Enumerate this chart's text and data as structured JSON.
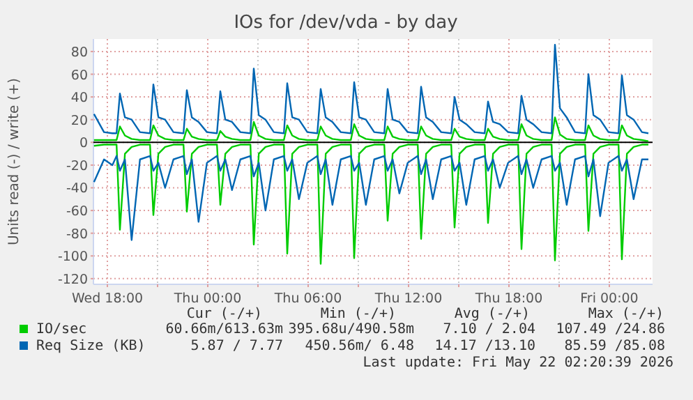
{
  "chart_data": {
    "type": "line",
    "title": "IOs for /dev/vda - by day",
    "ylabel": "Units read (-) / write (+)",
    "x": [
      "2026-05-20T17:12",
      "2026-05-20T17:48",
      "2026-05-20T18:18",
      "2026-05-20T18:33",
      "2026-05-20T18:45",
      "2026-05-20T19:03",
      "2026-05-20T19:27",
      "2026-05-20T19:57",
      "2026-05-20T20:33",
      "2026-05-20T20:45",
      "2026-05-20T21:03",
      "2026-05-20T21:27",
      "2026-05-20T21:57",
      "2026-05-20T22:33",
      "2026-05-20T22:45",
      "2026-05-20T23:03",
      "2026-05-20T23:27",
      "2026-05-20T23:57",
      "2026-05-21T00:33",
      "2026-05-21T00:45",
      "2026-05-21T01:03",
      "2026-05-21T01:27",
      "2026-05-21T01:57",
      "2026-05-21T02:33",
      "2026-05-21T02:45",
      "2026-05-21T03:03",
      "2026-05-21T03:27",
      "2026-05-21T03:57",
      "2026-05-21T04:33",
      "2026-05-21T04:45",
      "2026-05-21T05:03",
      "2026-05-21T05:27",
      "2026-05-21T05:57",
      "2026-05-21T06:33",
      "2026-05-21T06:45",
      "2026-05-21T07:03",
      "2026-05-21T07:27",
      "2026-05-21T07:57",
      "2026-05-21T08:33",
      "2026-05-21T08:45",
      "2026-05-21T09:03",
      "2026-05-21T09:27",
      "2026-05-21T09:57",
      "2026-05-21T10:33",
      "2026-05-21T10:45",
      "2026-05-21T11:03",
      "2026-05-21T11:27",
      "2026-05-21T11:57",
      "2026-05-21T12:33",
      "2026-05-21T12:45",
      "2026-05-21T13:03",
      "2026-05-21T13:27",
      "2026-05-21T13:57",
      "2026-05-21T14:33",
      "2026-05-21T14:45",
      "2026-05-21T15:03",
      "2026-05-21T15:27",
      "2026-05-21T15:57",
      "2026-05-21T16:33",
      "2026-05-21T16:45",
      "2026-05-21T17:03",
      "2026-05-21T17:27",
      "2026-05-21T17:57",
      "2026-05-21T18:33",
      "2026-05-21T18:45",
      "2026-05-21T19:03",
      "2026-05-21T19:27",
      "2026-05-21T19:57",
      "2026-05-21T20:33",
      "2026-05-21T20:45",
      "2026-05-21T21:03",
      "2026-05-21T21:27",
      "2026-05-21T21:57",
      "2026-05-21T22:33",
      "2026-05-21T22:45",
      "2026-05-21T23:03",
      "2026-05-21T23:27",
      "2026-05-21T23:57",
      "2026-05-22T00:33",
      "2026-05-22T00:45",
      "2026-05-22T01:03",
      "2026-05-22T01:27",
      "2026-05-22T01:57",
      "2026-05-22T02:20"
    ],
    "series": [
      {
        "name": "IO/sec",
        "color": "#00cc00",
        "values": [
          2,
          2,
          2,
          2,
          14,
          6,
          3,
          2,
          2,
          15,
          6,
          3,
          2,
          2,
          12,
          5,
          3,
          2,
          2,
          10,
          5,
          3,
          2,
          2,
          18,
          6,
          3,
          2,
          2,
          15,
          6,
          3,
          2,
          2,
          14,
          6,
          3,
          2,
          2,
          16,
          6,
          3,
          2,
          2,
          14,
          5,
          3,
          2,
          2,
          14,
          6,
          3,
          2,
          2,
          12,
          5,
          3,
          2,
          2,
          12,
          5,
          3,
          2,
          2,
          16,
          6,
          3,
          2,
          2,
          22,
          7,
          3,
          2,
          2,
          15,
          6,
          3,
          2,
          2,
          15,
          6,
          3,
          2,
          1
        ]
      },
      {
        "color": "#00cc00",
        "values": [
          -3,
          -2,
          -2,
          -2,
          -77,
          -10,
          -4,
          -2,
          -2,
          -64,
          -10,
          -4,
          -2,
          -2,
          -61,
          -10,
          -4,
          -2,
          -2,
          -55,
          -10,
          -4,
          -2,
          -2,
          -90,
          -10,
          -4,
          -2,
          -2,
          -98,
          -10,
          -4,
          -2,
          -2,
          -107,
          -10,
          -4,
          -2,
          -2,
          -102,
          -10,
          -4,
          -2,
          -2,
          -69,
          -10,
          -4,
          -2,
          -2,
          -85,
          -10,
          -4,
          -2,
          -2,
          -75,
          -10,
          -4,
          -2,
          -2,
          -71,
          -10,
          -4,
          -2,
          -2,
          -94,
          -10,
          -4,
          -2,
          -2,
          -104,
          -10,
          -4,
          -2,
          -2,
          -78,
          -10,
          -4,
          -2,
          -2,
          -103,
          -10,
          -4,
          -2,
          -2
        ]
      },
      {
        "name": "Req Size (KB)",
        "color": "#0066b3",
        "values": [
          25,
          9,
          8,
          8,
          43,
          22,
          20,
          9,
          8,
          51,
          22,
          20,
          9,
          8,
          46,
          22,
          18,
          9,
          8,
          45,
          20,
          18,
          9,
          8,
          65,
          24,
          20,
          9,
          8,
          52,
          22,
          20,
          9,
          8,
          47,
          22,
          18,
          9,
          8,
          53,
          22,
          20,
          9,
          8,
          47,
          20,
          18,
          9,
          8,
          49,
          22,
          18,
          9,
          8,
          40,
          20,
          16,
          9,
          8,
          36,
          18,
          16,
          9,
          8,
          41,
          20,
          16,
          9,
          8,
          86,
          30,
          22,
          9,
          8,
          60,
          24,
          20,
          9,
          8,
          59,
          24,
          20,
          9,
          8
        ]
      },
      {
        "color": "#0066b3",
        "values": [
          -35,
          -15,
          -20,
          -12,
          -25,
          -15,
          -86,
          -15,
          -12,
          -25,
          -18,
          -40,
          -15,
          -12,
          -28,
          -15,
          -70,
          -18,
          -12,
          -25,
          -15,
          -42,
          -15,
          -12,
          -30,
          -18,
          -60,
          -15,
          -12,
          -25,
          -15,
          -50,
          -18,
          -12,
          -28,
          -15,
          -55,
          -15,
          -12,
          -25,
          -18,
          -55,
          -15,
          -12,
          -25,
          -15,
          -45,
          -18,
          -12,
          -28,
          -15,
          -50,
          -15,
          -12,
          -25,
          -18,
          -55,
          -15,
          -12,
          -25,
          -15,
          -40,
          -18,
          -12,
          -28,
          -15,
          -40,
          -15,
          -12,
          -25,
          -18,
          -55,
          -15,
          -12,
          -30,
          -15,
          -65,
          -18,
          -12,
          -25,
          -15,
          -50,
          -15,
          -15
        ]
      }
    ],
    "xlim": [
      "2026-05-20T17:10",
      "2026-05-22T02:35"
    ],
    "xticks": [
      {
        "value": "2026-05-20T18:00",
        "label": "Wed 18:00"
      },
      {
        "value": "2026-05-20T21:00",
        "label": null
      },
      {
        "value": "2026-05-21T00:00",
        "label": "Thu 00:00"
      },
      {
        "value": "2026-05-21T03:00",
        "label": null
      },
      {
        "value": "2026-05-21T06:00",
        "label": "Thu 06:00"
      },
      {
        "value": "2026-05-21T09:00",
        "label": null
      },
      {
        "value": "2026-05-21T12:00",
        "label": "Thu 12:00"
      },
      {
        "value": "2026-05-21T15:00",
        "label": null
      },
      {
        "value": "2026-05-21T18:00",
        "label": "Thu 18:00"
      },
      {
        "value": "2026-05-21T21:00",
        "label": null
      },
      {
        "value": "2026-05-22T00:00",
        "label": "Fri 00:00"
      }
    ],
    "ylim": [
      -125,
      91
    ],
    "yticks": [
      -120,
      -100,
      -80,
      -60,
      -40,
      -20,
      0,
      20,
      40,
      60,
      80
    ],
    "grid": true,
    "legend": "bottom",
    "annotations": [
      "Cur (-/+)",
      "Min (-/+)",
      "Avg (-/+)",
      "Max (-/+)",
      "60.66m/613.63m",
      "395.68u/490.58m",
      "7.10 / 2.04",
      "107.49 /24.86",
      "5.87 / 7.77",
      "450.56m/ 6.48",
      "14.17 /13.10",
      "85.59 /85.08",
      "Last update: Fri May 22 02:20:39 2026"
    ]
  }
}
